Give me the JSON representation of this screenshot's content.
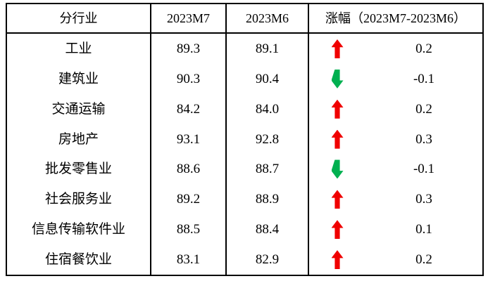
{
  "colors": {
    "up": "#f00000",
    "down": "#00b050",
    "border": "#000000",
    "background": "#ffffff",
    "text": "#000000"
  },
  "table": {
    "headers": {
      "industry": "分行业",
      "m7": "2023M7",
      "m6": "2023M6",
      "change": "涨幅（2023M7-2023M6）"
    },
    "rows": [
      {
        "industry": "工业",
        "m7": "89.3",
        "m6": "89.1",
        "trend": "up",
        "change": "0.2"
      },
      {
        "industry": "建筑业",
        "m7": "90.3",
        "m6": "90.4",
        "trend": "down",
        "change": "-0.1"
      },
      {
        "industry": "交通运输",
        "m7": "84.2",
        "m6": "84.0",
        "trend": "up",
        "change": "0.2"
      },
      {
        "industry": "房地产",
        "m7": "93.1",
        "m6": "92.8",
        "trend": "up",
        "change": "0.3"
      },
      {
        "industry": "批发零售业",
        "m7": "88.6",
        "m6": "88.7",
        "trend": "down",
        "change": "-0.1"
      },
      {
        "industry": "社会服务业",
        "m7": "89.2",
        "m6": "88.9",
        "trend": "up",
        "change": "0.3"
      },
      {
        "industry": "信息传输软件业",
        "m7": "88.5",
        "m6": "88.4",
        "trend": "up",
        "change": "0.1"
      },
      {
        "industry": "住宿餐饮业",
        "m7": "83.1",
        "m6": "82.9",
        "trend": "up",
        "change": "0.2"
      }
    ]
  },
  "chart_data": {
    "type": "table",
    "columns": [
      "分行业",
      "2023M7",
      "2023M6",
      "涨幅（2023M7-2023M6）"
    ],
    "rows": [
      [
        "工业",
        89.3,
        89.1,
        0.2
      ],
      [
        "建筑业",
        90.3,
        90.4,
        -0.1
      ],
      [
        "交通运输",
        84.2,
        84.0,
        0.2
      ],
      [
        "房地产",
        93.1,
        92.8,
        0.3
      ],
      [
        "批发零售业",
        88.6,
        88.7,
        -0.1
      ],
      [
        "社会服务业",
        89.2,
        88.9,
        0.3
      ],
      [
        "信息传输软件业",
        88.5,
        88.4,
        0.1
      ],
      [
        "住宿餐饮业",
        83.1,
        82.9,
        0.2
      ]
    ],
    "trend_per_row": [
      "up",
      "down",
      "up",
      "up",
      "down",
      "up",
      "up",
      "up"
    ],
    "notes": "red block arrow = increase, green block arrow = decrease"
  }
}
